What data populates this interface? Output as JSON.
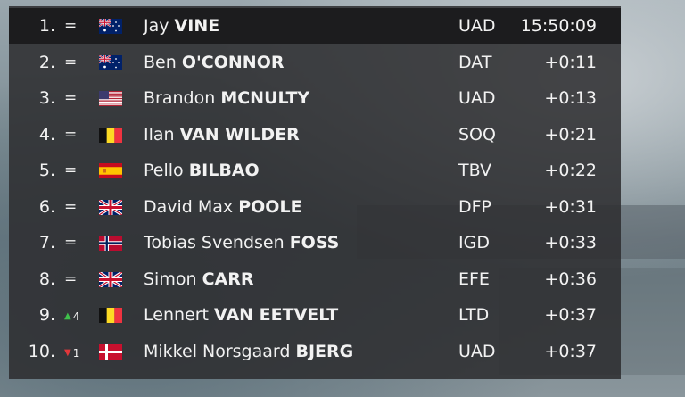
{
  "standings": [
    {
      "rank": "1.",
      "change": "=",
      "trend": "same",
      "flag": "australia-flag",
      "first": "Jay",
      "last": "VINE",
      "team": "UAD",
      "time": "15:50:09"
    },
    {
      "rank": "2.",
      "change": "=",
      "trend": "same",
      "flag": "australia-flag",
      "first": "Ben",
      "last": "O'CONNOR",
      "team": "DAT",
      "time": "+0:11"
    },
    {
      "rank": "3.",
      "change": "=",
      "trend": "same",
      "flag": "usa-flag",
      "first": "Brandon",
      "last": "MCNULTY",
      "team": "UAD",
      "time": "+0:13"
    },
    {
      "rank": "4.",
      "change": "=",
      "trend": "same",
      "flag": "belgium-flag",
      "first": "Ilan",
      "last": "VAN WILDER",
      "team": "SOQ",
      "time": "+0:21"
    },
    {
      "rank": "5.",
      "change": "=",
      "trend": "same",
      "flag": "spain-flag",
      "first": "Pello",
      "last": "BILBAO",
      "team": "TBV",
      "time": "+0:22"
    },
    {
      "rank": "6.",
      "change": "=",
      "trend": "same",
      "flag": "uk-flag",
      "first": "David Max",
      "last": "POOLE",
      "team": "DFP",
      "time": "+0:31"
    },
    {
      "rank": "7.",
      "change": "=",
      "trend": "same",
      "flag": "norway-flag",
      "first": "Tobias Svendsen",
      "last": "FOSS",
      "team": "IGD",
      "time": "+0:33"
    },
    {
      "rank": "8.",
      "change": "=",
      "trend": "same",
      "flag": "uk-flag",
      "first": "Simon",
      "last": "CARR",
      "team": "EFE",
      "time": "+0:36"
    },
    {
      "rank": "9.",
      "change": "4",
      "trend": "up",
      "flag": "belgium-flag",
      "first": "Lennert",
      "last": "VAN EETVELT",
      "team": "LTD",
      "time": "+0:37"
    },
    {
      "rank": "10.",
      "change": "1",
      "trend": "down",
      "flag": "denmark-flag",
      "first": "Mikkel Norsgaard",
      "last": "BJERG",
      "team": "UAD",
      "time": "+0:37"
    }
  ],
  "colors": {
    "up": "#3fc04b",
    "down": "#e2373a",
    "panel": "#2c2c2e",
    "leader_row": "#1c1c1e"
  }
}
